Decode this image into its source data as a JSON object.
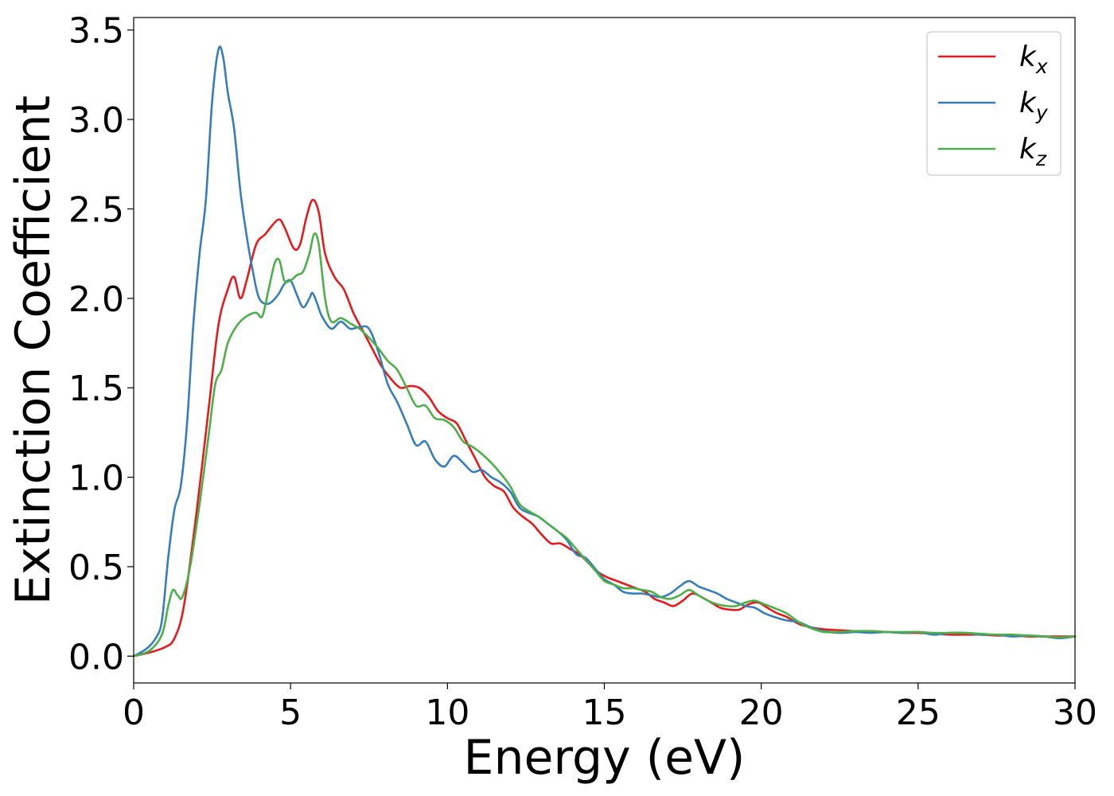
{
  "chart_data": {
    "type": "line",
    "title": "",
    "xlabel": "Energy (eV)",
    "ylabel": "Extinction Coefficient",
    "xlim": [
      0,
      30
    ],
    "ylim": [
      -0.15,
      3.57
    ],
    "xticks": [
      0,
      5,
      10,
      15,
      20,
      25,
      30
    ],
    "yticks": [
      0.0,
      0.5,
      1.0,
      1.5,
      2.0,
      2.5,
      3.0,
      3.5
    ],
    "xtick_labels": [
      "0",
      "5",
      "10",
      "15",
      "20",
      "25",
      "30"
    ],
    "ytick_labels": [
      "0.0",
      "0.5",
      "1.0",
      "1.5",
      "2.0",
      "2.5",
      "3.0",
      "3.5"
    ],
    "grid": false,
    "legend_position": "top-right",
    "series": [
      {
        "name": "k_x",
        "label_base": "k",
        "label_sub": "x",
        "color": "#e41a1c",
        "points": [
          [
            0,
            0.0
          ],
          [
            0.5,
            0.02
          ],
          [
            1.0,
            0.05
          ],
          [
            1.3,
            0.1
          ],
          [
            1.6,
            0.28
          ],
          [
            2.0,
            0.8
          ],
          [
            2.4,
            1.4
          ],
          [
            2.7,
            1.85
          ],
          [
            3.0,
            2.05
          ],
          [
            3.2,
            2.12
          ],
          [
            3.4,
            2.0
          ],
          [
            3.6,
            2.1
          ],
          [
            3.9,
            2.3
          ],
          [
            4.2,
            2.36
          ],
          [
            4.6,
            2.44
          ],
          [
            4.8,
            2.4
          ],
          [
            5.1,
            2.28
          ],
          [
            5.3,
            2.3
          ],
          [
            5.5,
            2.45
          ],
          [
            5.7,
            2.55
          ],
          [
            5.9,
            2.48
          ],
          [
            6.1,
            2.25
          ],
          [
            6.4,
            2.12
          ],
          [
            6.7,
            2.05
          ],
          [
            7.0,
            1.92
          ],
          [
            7.3,
            1.82
          ],
          [
            7.6,
            1.72
          ],
          [
            7.9,
            1.62
          ],
          [
            8.2,
            1.55
          ],
          [
            8.5,
            1.5
          ],
          [
            8.8,
            1.51
          ],
          [
            9.1,
            1.5
          ],
          [
            9.4,
            1.45
          ],
          [
            9.7,
            1.37
          ],
          [
            10.0,
            1.33
          ],
          [
            10.3,
            1.3
          ],
          [
            10.6,
            1.2
          ],
          [
            10.9,
            1.1
          ],
          [
            11.2,
            1.0
          ],
          [
            11.5,
            0.95
          ],
          [
            11.8,
            0.92
          ],
          [
            12.1,
            0.83
          ],
          [
            12.4,
            0.78
          ],
          [
            12.7,
            0.74
          ],
          [
            13.0,
            0.68
          ],
          [
            13.3,
            0.63
          ],
          [
            13.6,
            0.63
          ],
          [
            13.9,
            0.6
          ],
          [
            14.2,
            0.57
          ],
          [
            14.5,
            0.52
          ],
          [
            14.8,
            0.47
          ],
          [
            15.1,
            0.44
          ],
          [
            15.4,
            0.42
          ],
          [
            15.7,
            0.4
          ],
          [
            16.0,
            0.38
          ],
          [
            16.3,
            0.36
          ],
          [
            16.6,
            0.32
          ],
          [
            16.9,
            0.3
          ],
          [
            17.2,
            0.28
          ],
          [
            17.5,
            0.31
          ],
          [
            17.8,
            0.35
          ],
          [
            18.1,
            0.33
          ],
          [
            18.4,
            0.3
          ],
          [
            18.7,
            0.27
          ],
          [
            19.0,
            0.26
          ],
          [
            19.3,
            0.26
          ],
          [
            19.6,
            0.29
          ],
          [
            19.9,
            0.3
          ],
          [
            20.2,
            0.27
          ],
          [
            20.5,
            0.24
          ],
          [
            20.8,
            0.22
          ],
          [
            21.2,
            0.18
          ],
          [
            21.6,
            0.16
          ],
          [
            22.0,
            0.15
          ],
          [
            22.5,
            0.145
          ],
          [
            23.0,
            0.14
          ],
          [
            23.5,
            0.14
          ],
          [
            24.0,
            0.135
          ],
          [
            24.5,
            0.13
          ],
          [
            25.0,
            0.13
          ],
          [
            25.5,
            0.125
          ],
          [
            26.0,
            0.12
          ],
          [
            26.5,
            0.12
          ],
          [
            27.0,
            0.12
          ],
          [
            27.5,
            0.115
          ],
          [
            28.0,
            0.115
          ],
          [
            28.5,
            0.11
          ],
          [
            29.0,
            0.11
          ],
          [
            29.5,
            0.11
          ],
          [
            30.0,
            0.11
          ]
        ]
      },
      {
        "name": "k_y",
        "label_base": "k",
        "label_sub": "y",
        "color": "#377eb8",
        "points": [
          [
            0,
            0.0
          ],
          [
            0.4,
            0.04
          ],
          [
            0.7,
            0.1
          ],
          [
            0.9,
            0.2
          ],
          [
            1.1,
            0.55
          ],
          [
            1.3,
            0.82
          ],
          [
            1.5,
            0.95
          ],
          [
            1.7,
            1.3
          ],
          [
            1.9,
            1.85
          ],
          [
            2.1,
            2.25
          ],
          [
            2.3,
            2.55
          ],
          [
            2.5,
            3.1
          ],
          [
            2.7,
            3.39
          ],
          [
            2.85,
            3.35
          ],
          [
            3.0,
            3.15
          ],
          [
            3.2,
            2.95
          ],
          [
            3.4,
            2.6
          ],
          [
            3.6,
            2.35
          ],
          [
            3.8,
            2.15
          ],
          [
            4.0,
            2.0
          ],
          [
            4.3,
            1.97
          ],
          [
            4.6,
            2.02
          ],
          [
            4.8,
            2.08
          ],
          [
            5.0,
            2.1
          ],
          [
            5.2,
            2.02
          ],
          [
            5.4,
            1.95
          ],
          [
            5.6,
            2.0
          ],
          [
            5.7,
            2.03
          ],
          [
            5.85,
            1.97
          ],
          [
            6.0,
            1.9
          ],
          [
            6.3,
            1.83
          ],
          [
            6.6,
            1.87
          ],
          [
            6.9,
            1.83
          ],
          [
            7.2,
            1.84
          ],
          [
            7.5,
            1.83
          ],
          [
            7.8,
            1.7
          ],
          [
            8.1,
            1.52
          ],
          [
            8.4,
            1.42
          ],
          [
            8.7,
            1.3
          ],
          [
            9.0,
            1.18
          ],
          [
            9.3,
            1.2
          ],
          [
            9.6,
            1.1
          ],
          [
            9.9,
            1.06
          ],
          [
            10.2,
            1.12
          ],
          [
            10.5,
            1.08
          ],
          [
            10.8,
            1.03
          ],
          [
            11.1,
            1.04
          ],
          [
            11.4,
            1.0
          ],
          [
            11.7,
            0.97
          ],
          [
            12.0,
            0.92
          ],
          [
            12.3,
            0.83
          ],
          [
            12.6,
            0.8
          ],
          [
            12.9,
            0.78
          ],
          [
            13.2,
            0.74
          ],
          [
            13.5,
            0.7
          ],
          [
            13.8,
            0.65
          ],
          [
            14.1,
            0.57
          ],
          [
            14.4,
            0.55
          ],
          [
            14.7,
            0.49
          ],
          [
            15.0,
            0.43
          ],
          [
            15.3,
            0.4
          ],
          [
            15.6,
            0.36
          ],
          [
            15.9,
            0.35
          ],
          [
            16.2,
            0.35
          ],
          [
            16.5,
            0.34
          ],
          [
            16.8,
            0.33
          ],
          [
            17.1,
            0.35
          ],
          [
            17.4,
            0.39
          ],
          [
            17.7,
            0.42
          ],
          [
            18.0,
            0.39
          ],
          [
            18.3,
            0.37
          ],
          [
            18.6,
            0.35
          ],
          [
            18.9,
            0.32
          ],
          [
            19.2,
            0.3
          ],
          [
            19.5,
            0.28
          ],
          [
            19.8,
            0.27
          ],
          [
            20.1,
            0.24
          ],
          [
            20.4,
            0.22
          ],
          [
            20.8,
            0.2
          ],
          [
            21.2,
            0.19
          ],
          [
            21.6,
            0.16
          ],
          [
            22.0,
            0.14
          ],
          [
            22.5,
            0.13
          ],
          [
            23.0,
            0.135
          ],
          [
            23.5,
            0.13
          ],
          [
            24.0,
            0.135
          ],
          [
            24.5,
            0.13
          ],
          [
            25.0,
            0.135
          ],
          [
            25.5,
            0.12
          ],
          [
            26.0,
            0.13
          ],
          [
            26.5,
            0.13
          ],
          [
            27.0,
            0.12
          ],
          [
            27.5,
            0.12
          ],
          [
            28.0,
            0.11
          ],
          [
            28.5,
            0.115
          ],
          [
            29.0,
            0.11
          ],
          [
            29.5,
            0.1
          ],
          [
            30.0,
            0.11
          ]
        ]
      },
      {
        "name": "k_z",
        "label_base": "k",
        "label_sub": "z",
        "color": "#4daf4a",
        "points": [
          [
            0,
            0.0
          ],
          [
            0.5,
            0.03
          ],
          [
            0.9,
            0.12
          ],
          [
            1.1,
            0.28
          ],
          [
            1.25,
            0.37
          ],
          [
            1.4,
            0.34
          ],
          [
            1.55,
            0.33
          ],
          [
            1.8,
            0.5
          ],
          [
            2.1,
            0.85
          ],
          [
            2.4,
            1.25
          ],
          [
            2.6,
            1.52
          ],
          [
            2.8,
            1.6
          ],
          [
            3.0,
            1.75
          ],
          [
            3.3,
            1.85
          ],
          [
            3.6,
            1.9
          ],
          [
            3.9,
            1.92
          ],
          [
            4.1,
            1.9
          ],
          [
            4.3,
            2.05
          ],
          [
            4.5,
            2.2
          ],
          [
            4.65,
            2.21
          ],
          [
            4.8,
            2.1
          ],
          [
            5.0,
            2.1
          ],
          [
            5.2,
            2.13
          ],
          [
            5.4,
            2.15
          ],
          [
            5.6,
            2.25
          ],
          [
            5.75,
            2.36
          ],
          [
            5.9,
            2.3
          ],
          [
            6.1,
            2.0
          ],
          [
            6.3,
            1.87
          ],
          [
            6.6,
            1.89
          ],
          [
            6.9,
            1.86
          ],
          [
            7.2,
            1.83
          ],
          [
            7.5,
            1.78
          ],
          [
            7.8,
            1.72
          ],
          [
            8.1,
            1.65
          ],
          [
            8.4,
            1.6
          ],
          [
            8.7,
            1.5
          ],
          [
            9.0,
            1.4
          ],
          [
            9.3,
            1.4
          ],
          [
            9.6,
            1.33
          ],
          [
            9.9,
            1.32
          ],
          [
            10.2,
            1.28
          ],
          [
            10.5,
            1.2
          ],
          [
            10.8,
            1.17
          ],
          [
            11.1,
            1.13
          ],
          [
            11.4,
            1.08
          ],
          [
            11.7,
            1.02
          ],
          [
            12.0,
            0.95
          ],
          [
            12.3,
            0.85
          ],
          [
            12.6,
            0.81
          ],
          [
            12.9,
            0.78
          ],
          [
            13.2,
            0.74
          ],
          [
            13.5,
            0.7
          ],
          [
            13.8,
            0.66
          ],
          [
            14.1,
            0.6
          ],
          [
            14.4,
            0.54
          ],
          [
            14.7,
            0.48
          ],
          [
            15.0,
            0.42
          ],
          [
            15.3,
            0.4
          ],
          [
            15.6,
            0.38
          ],
          [
            15.9,
            0.38
          ],
          [
            16.2,
            0.37
          ],
          [
            16.5,
            0.36
          ],
          [
            16.8,
            0.33
          ],
          [
            17.1,
            0.32
          ],
          [
            17.4,
            0.34
          ],
          [
            17.7,
            0.37
          ],
          [
            18.0,
            0.34
          ],
          [
            18.3,
            0.31
          ],
          [
            18.6,
            0.29
          ],
          [
            18.9,
            0.28
          ],
          [
            19.2,
            0.28
          ],
          [
            19.5,
            0.3
          ],
          [
            19.8,
            0.31
          ],
          [
            20.1,
            0.29
          ],
          [
            20.4,
            0.27
          ],
          [
            20.8,
            0.24
          ],
          [
            21.2,
            0.19
          ],
          [
            21.6,
            0.155
          ],
          [
            22.0,
            0.135
          ],
          [
            22.5,
            0.135
          ],
          [
            23.0,
            0.14
          ],
          [
            23.5,
            0.14
          ],
          [
            24.0,
            0.135
          ],
          [
            24.5,
            0.135
          ],
          [
            25.0,
            0.135
          ],
          [
            25.5,
            0.13
          ],
          [
            26.0,
            0.13
          ],
          [
            26.5,
            0.13
          ],
          [
            27.0,
            0.125
          ],
          [
            27.5,
            0.12
          ],
          [
            28.0,
            0.12
          ],
          [
            28.5,
            0.115
          ],
          [
            29.0,
            0.11
          ],
          [
            29.5,
            0.105
          ],
          [
            30.0,
            0.11
          ]
        ]
      }
    ]
  }
}
